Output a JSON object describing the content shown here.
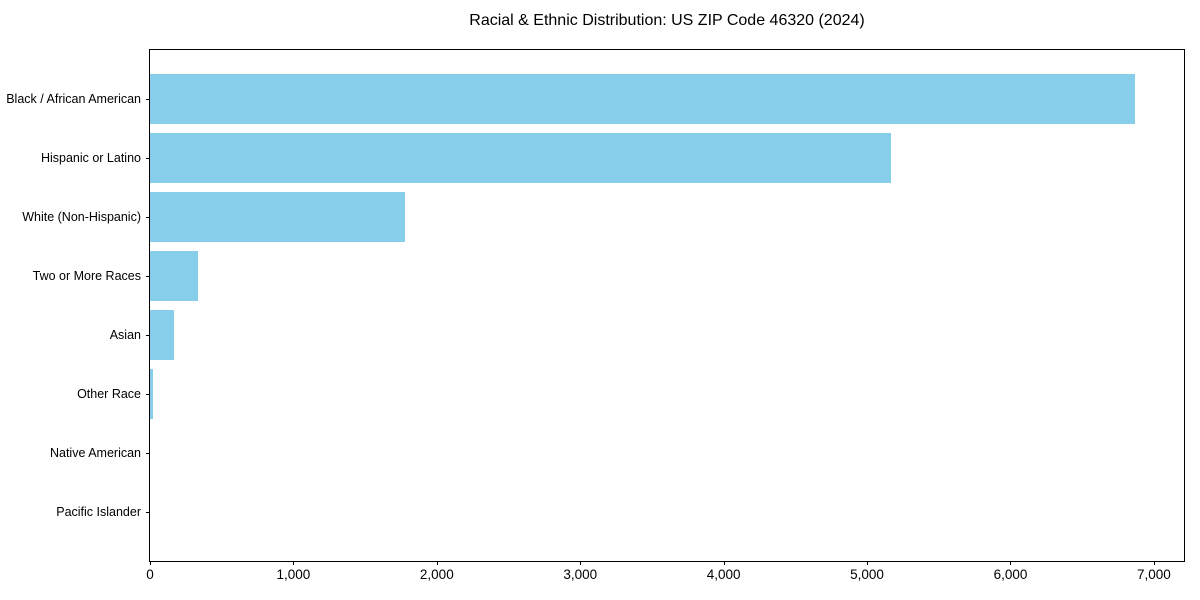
{
  "figure": {
    "background": "#ffffff"
  },
  "chart_data": {
    "type": "bar",
    "orientation": "horizontal",
    "title": "Racial & Ethnic Distribution: US ZIP Code 46320 (2024)",
    "categories": [
      "Black / African American",
      "Hispanic or Latino",
      "White (Non-Hispanic)",
      "Two or More Races",
      "Asian",
      "Other Race",
      "Native American",
      "Pacific Islander"
    ],
    "values": [
      6870,
      5170,
      1780,
      335,
      165,
      20,
      0,
      0
    ],
    "xlabel": "",
    "ylabel": "",
    "xlim": [
      0,
      7210
    ],
    "x_ticks": [
      0,
      1000,
      2000,
      3000,
      4000,
      5000,
      6000,
      7000
    ],
    "x_tick_labels": [
      "0",
      "1,000",
      "2,000",
      "3,000",
      "4,000",
      "5,000",
      "6,000",
      "7,000"
    ],
    "grid": false,
    "legend": false,
    "bar_color": "#87CEEB",
    "axis_color": "#000000",
    "text_color": "#000000"
  }
}
